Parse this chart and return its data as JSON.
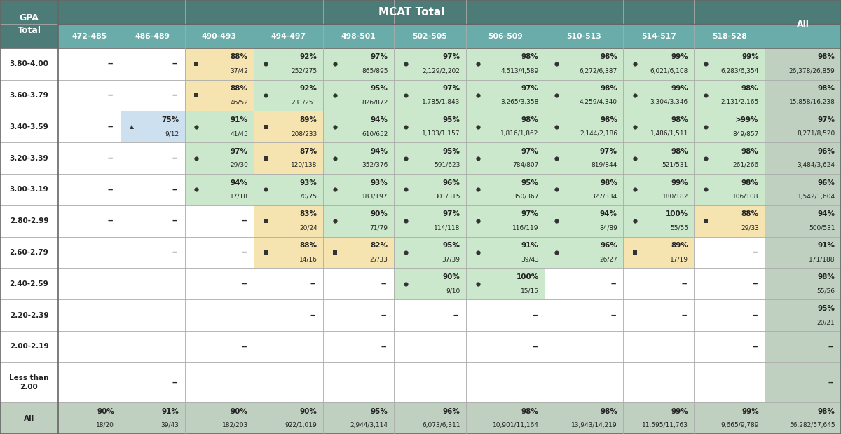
{
  "col_headers": [
    "472-485",
    "486-489",
    "490-493",
    "494-497",
    "498-501",
    "502-505",
    "506-509",
    "510-513",
    "514-517",
    "518-528",
    "All"
  ],
  "gpa_rows": [
    "3.80-4.00",
    "3.60-3.79",
    "3.40-3.59",
    "3.20-3.39",
    "3.00-3.19",
    "2.80-2.99",
    "2.60-2.79",
    "2.40-2.59",
    "2.20-2.39",
    "2.00-2.19",
    "Less than\n2.00",
    "All"
  ],
  "cells": [
    [
      "--",
      "--",
      "88%\n37/42",
      "92%\n252/275",
      "97%\n865/895",
      "97%\n2,129/2,202",
      "98%\n4,513/4,589",
      "98%\n6,272/6,387",
      "99%\n6,021/6,108",
      "99%\n6,283/6,354",
      "98%\n26,378/26,859"
    ],
    [
      "--",
      "--",
      "88%\n46/52",
      "92%\n231/251",
      "95%\n826/872",
      "97%\n1,785/1,843",
      "97%\n3,265/3,358",
      "98%\n4,259/4,340",
      "99%\n3,304/3,346",
      "98%\n2,131/2,165",
      "98%\n15,858/16,238"
    ],
    [
      "--",
      "75%\n9/12",
      "91%\n41/45",
      "89%\n208/233",
      "94%\n610/652",
      "95%\n1,103/1,157",
      "98%\n1,816/1,862",
      "98%\n2,144/2,186",
      "98%\n1,486/1,511",
      ">99%\n849/857",
      "97%\n8,271/8,520"
    ],
    [
      "--",
      "--",
      "97%\n29/30",
      "87%\n120/138",
      "94%\n352/376",
      "95%\n591/623",
      "97%\n784/807",
      "97%\n819/844",
      "98%\n521/531",
      "98%\n261/266",
      "96%\n3,484/3,624"
    ],
    [
      "--",
      "--",
      "94%\n17/18",
      "93%\n70/75",
      "93%\n183/197",
      "96%\n301/315",
      "95%\n350/367",
      "98%\n327/334",
      "99%\n180/182",
      "98%\n106/108",
      "96%\n1,542/1,604"
    ],
    [
      "--",
      "--",
      "--",
      "83%\n20/24",
      "90%\n71/79",
      "97%\n114/118",
      "97%\n116/119",
      "94%\n84/89",
      "100%\n55/55",
      "88%\n29/33",
      "94%\n500/531"
    ],
    [
      "",
      "--",
      "--",
      "88%\n14/16",
      "82%\n27/33",
      "95%\n37/39",
      "91%\n39/43",
      "96%\n26/27",
      "89%\n17/19",
      "--",
      "91%\n171/188"
    ],
    [
      "",
      "",
      "--",
      "--",
      "--",
      "90%\n9/10",
      "100%\n15/15",
      "--",
      "--",
      "--",
      "98%\n55/56"
    ],
    [
      "",
      "",
      "",
      "--",
      "--",
      "--",
      "--",
      "--",
      "--",
      "--",
      "95%\n20/21"
    ],
    [
      "",
      "",
      "--",
      "",
      "--",
      "",
      "--",
      "",
      "",
      "--",
      "--"
    ],
    [
      "",
      "--",
      "",
      "",
      "",
      "",
      "",
      "",
      "",
      "",
      "--"
    ],
    [
      "90%\n18/20",
      "91%\n39/43",
      "90%\n182/203",
      "90%\n922/1,019",
      "95%\n2,944/3,114",
      "96%\n6,073/6,311",
      "98%\n10,901/11,164",
      "98%\n13,943/14,219",
      "99%\n11,595/11,763",
      "99%\n9,665/9,789",
      "98%\n56,282/57,645"
    ]
  ],
  "markers": [
    [
      "none",
      "none",
      "square",
      "circle",
      "circle",
      "circle",
      "circle",
      "circle",
      "circle",
      "circle",
      "none"
    ],
    [
      "none",
      "none",
      "square",
      "circle",
      "circle",
      "circle",
      "circle",
      "circle",
      "circle",
      "circle",
      "none"
    ],
    [
      "none",
      "triangle",
      "circle",
      "square",
      "circle",
      "circle",
      "circle",
      "circle",
      "circle",
      "circle",
      "none"
    ],
    [
      "none",
      "none",
      "circle",
      "square",
      "circle",
      "circle",
      "circle",
      "circle",
      "circle",
      "circle",
      "none"
    ],
    [
      "none",
      "none",
      "circle",
      "circle",
      "circle",
      "circle",
      "circle",
      "circle",
      "circle",
      "circle",
      "none"
    ],
    [
      "none",
      "none",
      "none",
      "square",
      "circle",
      "circle",
      "circle",
      "circle",
      "circle",
      "square",
      "none"
    ],
    [
      "none",
      "none",
      "none",
      "square",
      "square",
      "circle",
      "circle",
      "circle",
      "square",
      "none",
      "none"
    ],
    [
      "none",
      "none",
      "none",
      "none",
      "none",
      "circle",
      "circle",
      "none",
      "none",
      "none",
      "none"
    ],
    [
      "none",
      "none",
      "none",
      "none",
      "none",
      "none",
      "none",
      "none",
      "none",
      "none",
      "none"
    ],
    [
      "none",
      "none",
      "none",
      "none",
      "none",
      "none",
      "none",
      "none",
      "none",
      "none",
      "none"
    ],
    [
      "none",
      "none",
      "none",
      "none",
      "none",
      "none",
      "none",
      "none",
      "none",
      "none",
      "none"
    ],
    [
      "none",
      "none",
      "none",
      "none",
      "none",
      "none",
      "none",
      "none",
      "none",
      "none",
      "none"
    ]
  ],
  "cell_bg_colors": [
    [
      "white",
      "white",
      "#f5e3b0",
      "#cce8cc",
      "#cce8cc",
      "#cce8cc",
      "#cce8cc",
      "#cce8cc",
      "#cce8cc",
      "#cce8cc",
      "#c0d0c0"
    ],
    [
      "white",
      "white",
      "#f5e3b0",
      "#cce8cc",
      "#cce8cc",
      "#cce8cc",
      "#cce8cc",
      "#cce8cc",
      "#cce8cc",
      "#cce8cc",
      "#c0d0c0"
    ],
    [
      "white",
      "#cce0f0",
      "#cce8cc",
      "#f5e3b0",
      "#cce8cc",
      "#cce8cc",
      "#cce8cc",
      "#cce8cc",
      "#cce8cc",
      "#cce8cc",
      "#c0d0c0"
    ],
    [
      "white",
      "white",
      "#cce8cc",
      "#f5e3b0",
      "#cce8cc",
      "#cce8cc",
      "#cce8cc",
      "#cce8cc",
      "#cce8cc",
      "#cce8cc",
      "#c0d0c0"
    ],
    [
      "white",
      "white",
      "#cce8cc",
      "#cce8cc",
      "#cce8cc",
      "#cce8cc",
      "#cce8cc",
      "#cce8cc",
      "#cce8cc",
      "#cce8cc",
      "#c0d0c0"
    ],
    [
      "white",
      "white",
      "white",
      "#f5e3b0",
      "#cce8cc",
      "#cce8cc",
      "#cce8cc",
      "#cce8cc",
      "#cce8cc",
      "#f5e3b0",
      "#c0d0c0"
    ],
    [
      "white",
      "white",
      "white",
      "#f5e3b0",
      "#f5e3b0",
      "#cce8cc",
      "#cce8cc",
      "#cce8cc",
      "#f5e3b0",
      "white",
      "#c0d0c0"
    ],
    [
      "white",
      "white",
      "white",
      "white",
      "white",
      "#cce8cc",
      "#cce8cc",
      "white",
      "white",
      "white",
      "#c0d0c0"
    ],
    [
      "white",
      "white",
      "white",
      "white",
      "white",
      "white",
      "white",
      "white",
      "white",
      "white",
      "#c0d0c0"
    ],
    [
      "white",
      "white",
      "white",
      "white",
      "white",
      "white",
      "white",
      "white",
      "white",
      "white",
      "#c0d0c0"
    ],
    [
      "white",
      "white",
      "white",
      "white",
      "white",
      "white",
      "white",
      "white",
      "white",
      "white",
      "#c0d0c0"
    ],
    [
      "#c0d0c0",
      "#c0d0c0",
      "#c0d0c0",
      "#c0d0c0",
      "#c0d0c0",
      "#c0d0c0",
      "#c0d0c0",
      "#c0d0c0",
      "#c0d0c0",
      "#c0d0c0",
      "#c0d0c0"
    ]
  ],
  "header_bg": "#4d7c78",
  "subheader_bg": "#6aacaa",
  "header_text_color": "white",
  "border_color": "#aaaaaa",
  "border_dark": "#666666",
  "text_color": "#222222",
  "figsize": [
    12.0,
    6.19
  ],
  "dpi": 100
}
